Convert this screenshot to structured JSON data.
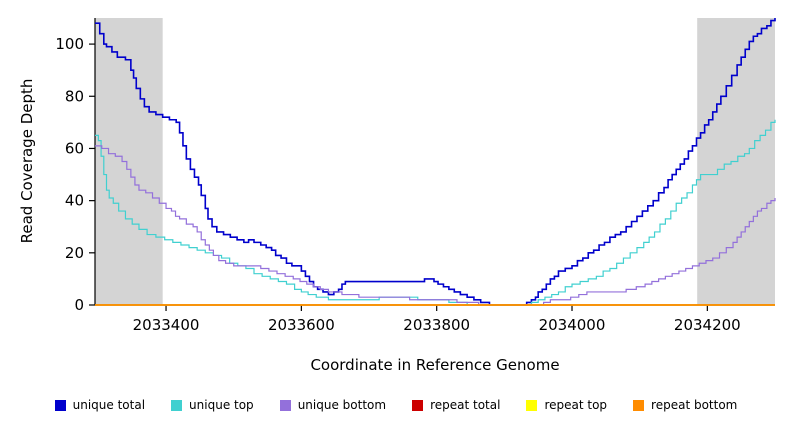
{
  "chart_data": {
    "type": "line",
    "title": "",
    "xlabel": "Coordinate in Reference Genome",
    "ylabel": "Read Coverage Depth",
    "xlim": [
      2033295,
      2034300
    ],
    "ylim": [
      0,
      110
    ],
    "xticks": [
      2033400,
      2033600,
      2033800,
      2034000,
      2034200
    ],
    "yticks": [
      0,
      20,
      40,
      60,
      80,
      100
    ],
    "grid": false,
    "legend_position": "bottom",
    "shaded_regions": [
      {
        "x0": 2033295,
        "x1": 2033395,
        "color": "#d4d4d4"
      },
      {
        "x0": 2034185,
        "x1": 2034300,
        "color": "#d4d4d4"
      }
    ],
    "series": [
      {
        "name": "unique total",
        "color": "#0000cc",
        "width": 1.6,
        "points": [
          [
            2033295,
            108
          ],
          [
            2033302,
            104
          ],
          [
            2033308,
            100
          ],
          [
            2033312,
            99
          ],
          [
            2033320,
            97
          ],
          [
            2033328,
            95
          ],
          [
            2033340,
            94
          ],
          [
            2033348,
            90
          ],
          [
            2033352,
            87
          ],
          [
            2033356,
            83
          ],
          [
            2033362,
            79
          ],
          [
            2033368,
            76
          ],
          [
            2033375,
            74
          ],
          [
            2033385,
            73
          ],
          [
            2033395,
            72
          ],
          [
            2033405,
            71
          ],
          [
            2033415,
            70
          ],
          [
            2033420,
            66
          ],
          [
            2033425,
            61
          ],
          [
            2033430,
            56
          ],
          [
            2033436,
            52
          ],
          [
            2033442,
            49
          ],
          [
            2033448,
            46
          ],
          [
            2033452,
            42
          ],
          [
            2033458,
            37
          ],
          [
            2033462,
            33
          ],
          [
            2033468,
            30
          ],
          [
            2033475,
            28
          ],
          [
            2033485,
            27
          ],
          [
            2033495,
            26
          ],
          [
            2033505,
            25
          ],
          [
            2033515,
            24
          ],
          [
            2033522,
            25
          ],
          [
            2033530,
            24
          ],
          [
            2033540,
            23
          ],
          [
            2033548,
            22
          ],
          [
            2033556,
            21
          ],
          [
            2033562,
            19
          ],
          [
            2033570,
            18
          ],
          [
            2033578,
            16
          ],
          [
            2033586,
            15
          ],
          [
            2033594,
            15
          ],
          [
            2033600,
            13
          ],
          [
            2033606,
            11
          ],
          [
            2033612,
            9
          ],
          [
            2033618,
            7
          ],
          [
            2033624,
            6
          ],
          [
            2033632,
            5
          ],
          [
            2033640,
            4
          ],
          [
            2033648,
            5
          ],
          [
            2033655,
            6
          ],
          [
            2033660,
            8
          ],
          [
            2033665,
            9
          ],
          [
            2033700,
            9
          ],
          [
            2033740,
            9
          ],
          [
            2033775,
            9
          ],
          [
            2033782,
            10
          ],
          [
            2033790,
            10
          ],
          [
            2033796,
            9
          ],
          [
            2033802,
            8
          ],
          [
            2033810,
            7
          ],
          [
            2033818,
            6
          ],
          [
            2033826,
            5
          ],
          [
            2033835,
            4
          ],
          [
            2033845,
            3
          ],
          [
            2033855,
            2
          ],
          [
            2033865,
            1
          ],
          [
            2033878,
            0
          ],
          [
            2033925,
            0
          ],
          [
            2033933,
            1
          ],
          [
            2033940,
            2
          ],
          [
            2033946,
            3
          ],
          [
            2033950,
            5
          ],
          [
            2033956,
            6
          ],
          [
            2033962,
            8
          ],
          [
            2033968,
            10
          ],
          [
            2033974,
            11
          ],
          [
            2033980,
            13
          ],
          [
            2033990,
            14
          ],
          [
            2034000,
            15
          ],
          [
            2034008,
            17
          ],
          [
            2034016,
            18
          ],
          [
            2034024,
            20
          ],
          [
            2034032,
            21
          ],
          [
            2034040,
            23
          ],
          [
            2034048,
            24
          ],
          [
            2034056,
            26
          ],
          [
            2034064,
            27
          ],
          [
            2034072,
            28
          ],
          [
            2034080,
            30
          ],
          [
            2034088,
            32
          ],
          [
            2034096,
            34
          ],
          [
            2034104,
            36
          ],
          [
            2034112,
            38
          ],
          [
            2034120,
            40
          ],
          [
            2034128,
            43
          ],
          [
            2034136,
            45
          ],
          [
            2034142,
            48
          ],
          [
            2034148,
            50
          ],
          [
            2034154,
            52
          ],
          [
            2034160,
            54
          ],
          [
            2034166,
            56
          ],
          [
            2034172,
            59
          ],
          [
            2034178,
            61
          ],
          [
            2034184,
            64
          ],
          [
            2034190,
            66
          ],
          [
            2034196,
            69
          ],
          [
            2034202,
            71
          ],
          [
            2034208,
            74
          ],
          [
            2034214,
            77
          ],
          [
            2034220,
            80
          ],
          [
            2034228,
            84
          ],
          [
            2034236,
            88
          ],
          [
            2034244,
            92
          ],
          [
            2034250,
            95
          ],
          [
            2034256,
            98
          ],
          [
            2034262,
            101
          ],
          [
            2034268,
            103
          ],
          [
            2034274,
            104
          ],
          [
            2034280,
            106
          ],
          [
            2034288,
            107
          ],
          [
            2034294,
            109
          ],
          [
            2034300,
            110
          ]
        ]
      },
      {
        "name": "unique top",
        "color": "#40d0d0",
        "width": 1.2,
        "points": [
          [
            2033295,
            65
          ],
          [
            2033300,
            63
          ],
          [
            2033304,
            57
          ],
          [
            2033308,
            50
          ],
          [
            2033312,
            44
          ],
          [
            2033316,
            41
          ],
          [
            2033322,
            39
          ],
          [
            2033330,
            36
          ],
          [
            2033340,
            33
          ],
          [
            2033350,
            31
          ],
          [
            2033360,
            29
          ],
          [
            2033372,
            27
          ],
          [
            2033385,
            26
          ],
          [
            2033398,
            25
          ],
          [
            2033410,
            24
          ],
          [
            2033422,
            23
          ],
          [
            2033434,
            22
          ],
          [
            2033446,
            21
          ],
          [
            2033458,
            20
          ],
          [
            2033470,
            19
          ],
          [
            2033482,
            18
          ],
          [
            2033494,
            16
          ],
          [
            2033506,
            15
          ],
          [
            2033518,
            14
          ],
          [
            2033530,
            12
          ],
          [
            2033542,
            11
          ],
          [
            2033554,
            10
          ],
          [
            2033566,
            9
          ],
          [
            2033578,
            8
          ],
          [
            2033590,
            6
          ],
          [
            2033600,
            5
          ],
          [
            2033610,
            4
          ],
          [
            2033622,
            3
          ],
          [
            2033640,
            2
          ],
          [
            2033680,
            2
          ],
          [
            2033715,
            3
          ],
          [
            2033755,
            3
          ],
          [
            2033772,
            2
          ],
          [
            2033800,
            2
          ],
          [
            2033818,
            1
          ],
          [
            2033845,
            0
          ],
          [
            2033928,
            0
          ],
          [
            2033940,
            1
          ],
          [
            2033950,
            2
          ],
          [
            2033960,
            3
          ],
          [
            2033970,
            4
          ],
          [
            2033980,
            5
          ],
          [
            2033990,
            7
          ],
          [
            2034000,
            8
          ],
          [
            2034012,
            9
          ],
          [
            2034024,
            10
          ],
          [
            2034036,
            11
          ],
          [
            2034046,
            13
          ],
          [
            2034056,
            14
          ],
          [
            2034066,
            16
          ],
          [
            2034076,
            18
          ],
          [
            2034086,
            20
          ],
          [
            2034096,
            22
          ],
          [
            2034106,
            24
          ],
          [
            2034114,
            26
          ],
          [
            2034122,
            28
          ],
          [
            2034130,
            31
          ],
          [
            2034138,
            33
          ],
          [
            2034146,
            36
          ],
          [
            2034154,
            39
          ],
          [
            2034162,
            41
          ],
          [
            2034170,
            43
          ],
          [
            2034178,
            46
          ],
          [
            2034184,
            48
          ],
          [
            2034190,
            50
          ],
          [
            2034205,
            50
          ],
          [
            2034215,
            52
          ],
          [
            2034225,
            54
          ],
          [
            2034235,
            55
          ],
          [
            2034245,
            57
          ],
          [
            2034255,
            58
          ],
          [
            2034262,
            60
          ],
          [
            2034270,
            63
          ],
          [
            2034278,
            65
          ],
          [
            2034286,
            67
          ],
          [
            2034294,
            70
          ],
          [
            2034300,
            71
          ]
        ]
      },
      {
        "name": "unique bottom",
        "color": "#9370db",
        "width": 1.2,
        "points": [
          [
            2033295,
            61
          ],
          [
            2033305,
            60
          ],
          [
            2033315,
            58
          ],
          [
            2033325,
            57
          ],
          [
            2033335,
            55
          ],
          [
            2033342,
            52
          ],
          [
            2033348,
            49
          ],
          [
            2033354,
            46
          ],
          [
            2033360,
            44
          ],
          [
            2033370,
            43
          ],
          [
            2033380,
            41
          ],
          [
            2033390,
            39
          ],
          [
            2033400,
            37
          ],
          [
            2033408,
            36
          ],
          [
            2033414,
            34
          ],
          [
            2033420,
            33
          ],
          [
            2033430,
            31
          ],
          [
            2033440,
            30
          ],
          [
            2033446,
            28
          ],
          [
            2033452,
            25
          ],
          [
            2033458,
            23
          ],
          [
            2033464,
            21
          ],
          [
            2033470,
            19
          ],
          [
            2033478,
            17
          ],
          [
            2033488,
            16
          ],
          [
            2033500,
            15
          ],
          [
            2033525,
            15
          ],
          [
            2033540,
            14
          ],
          [
            2033552,
            13
          ],
          [
            2033564,
            12
          ],
          [
            2033576,
            11
          ],
          [
            2033588,
            10
          ],
          [
            2033598,
            9
          ],
          [
            2033608,
            8
          ],
          [
            2033618,
            7
          ],
          [
            2033628,
            6
          ],
          [
            2033640,
            5
          ],
          [
            2033660,
            4
          ],
          [
            2033685,
            3
          ],
          [
            2033730,
            3
          ],
          [
            2033760,
            2
          ],
          [
            2033805,
            2
          ],
          [
            2033830,
            1
          ],
          [
            2033862,
            0
          ],
          [
            2033948,
            0
          ],
          [
            2033958,
            1
          ],
          [
            2033968,
            2
          ],
          [
            2033985,
            2
          ],
          [
            2033998,
            3
          ],
          [
            2034010,
            4
          ],
          [
            2034022,
            5
          ],
          [
            2034065,
            5
          ],
          [
            2034080,
            6
          ],
          [
            2034095,
            7
          ],
          [
            2034108,
            8
          ],
          [
            2034118,
            9
          ],
          [
            2034128,
            10
          ],
          [
            2034138,
            11
          ],
          [
            2034148,
            12
          ],
          [
            2034158,
            13
          ],
          [
            2034168,
            14
          ],
          [
            2034178,
            15
          ],
          [
            2034188,
            16
          ],
          [
            2034198,
            17
          ],
          [
            2034208,
            18
          ],
          [
            2034218,
            20
          ],
          [
            2034228,
            22
          ],
          [
            2034238,
            24
          ],
          [
            2034244,
            26
          ],
          [
            2034250,
            28
          ],
          [
            2034256,
            30
          ],
          [
            2034262,
            32
          ],
          [
            2034268,
            34
          ],
          [
            2034274,
            36
          ],
          [
            2034280,
            37
          ],
          [
            2034288,
            39
          ],
          [
            2034294,
            40
          ],
          [
            2034300,
            41
          ]
        ]
      },
      {
        "name": "repeat total",
        "color": "#cc0000",
        "width": 1.4,
        "points": [
          [
            2033295,
            0
          ],
          [
            2034300,
            0
          ]
        ]
      },
      {
        "name": "repeat top",
        "color": "#ffff00",
        "width": 1.4,
        "points": [
          [
            2033295,
            0
          ],
          [
            2034300,
            0
          ]
        ]
      },
      {
        "name": "repeat bottom",
        "color": "#ff8c00",
        "width": 1.4,
        "points": [
          [
            2033295,
            0
          ],
          [
            2034300,
            0
          ]
        ]
      }
    ]
  }
}
